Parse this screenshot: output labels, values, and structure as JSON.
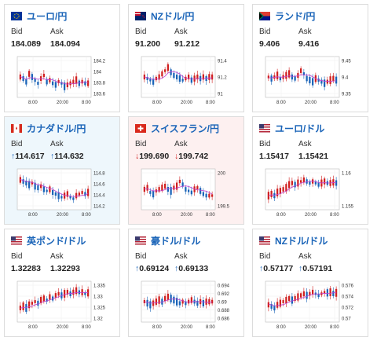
{
  "cards": [
    {
      "pair": "ユーロ/円",
      "flag": "eu-flag",
      "tint": "",
      "bid_label": "Bid",
      "ask_label": "Ask",
      "bid": "184.089",
      "ask": "184.094",
      "arrow": "",
      "ticks_y": [
        "184.2",
        "184",
        "183.8",
        "183.6"
      ],
      "ticks_x": [
        "8:00",
        "20:00",
        "8:00"
      ]
    },
    {
      "pair": "NZドル/円",
      "flag": "nz-flag",
      "tint": "",
      "bid_label": "Bid",
      "ask_label": "Ask",
      "bid": "91.200",
      "ask": "91.212",
      "arrow": "",
      "ticks_y": [
        "91.4",
        "91.2",
        "91"
      ],
      "ticks_x": [
        "8:00",
        "20:00",
        "8:00"
      ]
    },
    {
      "pair": "ランド/円",
      "flag": "za-flag",
      "tint": "",
      "bid_label": "Bid",
      "ask_label": "Ask",
      "bid": "9.406",
      "ask": "9.416",
      "arrow": "",
      "ticks_y": [
        "9.45",
        "9.4",
        "9.35"
      ],
      "ticks_x": [
        "8:00",
        "20:00",
        "8:00"
      ]
    },
    {
      "pair": "カナダドル/円",
      "flag": "ca-flag",
      "tint": "tint-blue",
      "bid_label": "Bid",
      "ask_label": "Ask",
      "bid": "114.617",
      "ask": "114.632",
      "arrow": "up",
      "ticks_y": [
        "114.8",
        "114.6",
        "114.4",
        "114.2"
      ],
      "ticks_x": [
        "8:00",
        "20:00",
        "8:00"
      ]
    },
    {
      "pair": "スイスフラン/円",
      "flag": "ch-flag",
      "tint": "tint-red",
      "bid_label": "Bid",
      "ask_label": "Ask",
      "bid": "199.690",
      "ask": "199.742",
      "arrow": "down",
      "ticks_y": [
        "200",
        "199.5"
      ],
      "ticks_x": [
        "8:00",
        "20:00",
        "8:00"
      ]
    },
    {
      "pair": "ユーロ/ドル",
      "flag": "us-flag",
      "tint": "",
      "bid_label": "Bid",
      "ask_label": "Ask",
      "bid": "1.15417",
      "ask": "1.15421",
      "arrow": "",
      "ticks_y": [
        "1.16",
        "1.155"
      ],
      "ticks_x": [
        "8:00",
        "20:00",
        "8:00"
      ]
    },
    {
      "pair": "英ポンド/ドル",
      "flag": "us-flag",
      "tint": "",
      "bid_label": "Bid",
      "ask_label": "Ask",
      "bid": "1.32283",
      "ask": "1.32293",
      "arrow": "",
      "ticks_y": [
        "1.335",
        "1.33",
        "1.325",
        "1.32"
      ],
      "ticks_x": [
        "8:00",
        "20:00",
        "8:00"
      ]
    },
    {
      "pair": "豪ドル/ドル",
      "flag": "us-flag",
      "tint": "",
      "bid_label": "Bid",
      "ask_label": "Ask",
      "bid": "0.69124",
      "ask": "0.69133",
      "arrow": "up",
      "ticks_y": [
        "0.694",
        "0.692",
        "0.69",
        "0.688",
        "0.686"
      ],
      "ticks_x": [
        "8:00",
        "20:00",
        "8:00"
      ]
    },
    {
      "pair": "NZドル/ドル",
      "flag": "us-flag",
      "tint": "",
      "bid_label": "Bid",
      "ask_label": "Ask",
      "bid": "0.57177",
      "ask": "0.57191",
      "arrow": "up",
      "ticks_y": [
        "0.576",
        "0.574",
        "0.572",
        "0.57"
      ],
      "ticks_x": [
        "8:00",
        "20:00",
        "8:00"
      ]
    }
  ],
  "arrows": {
    "up": "↑",
    "down": "↓"
  },
  "colors": {
    "up_candle": "#d02020",
    "down_candle": "#1a64b8",
    "ma": "#c040d0",
    "title": "#1a64b8"
  }
}
